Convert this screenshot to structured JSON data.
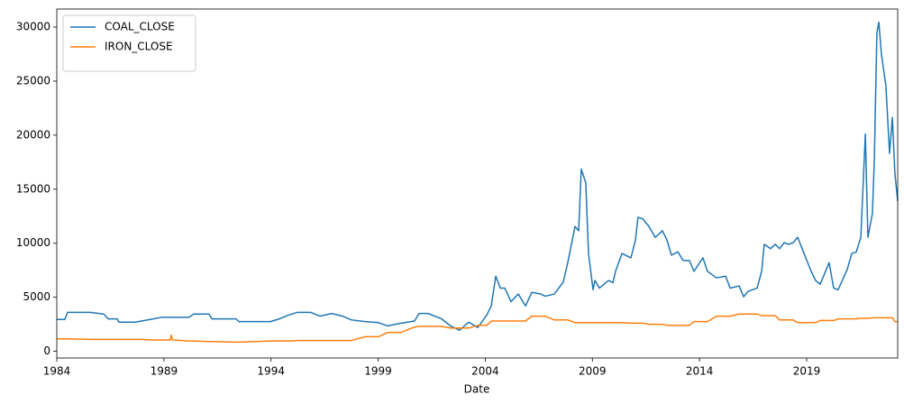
{
  "chart_data": {
    "type": "line",
    "x_label": "Date",
    "x": [
      1984.0,
      1984.38,
      1984.5,
      1985.56,
      1986.19,
      1986.4,
      1986.82,
      1986.9,
      1987.66,
      1987.95,
      1988.5,
      1988.92,
      1989.3,
      1989.34,
      1989.4,
      1990.18,
      1990.39,
      1991.11,
      1991.24,
      1992.37,
      1992.5,
      1993.97,
      1994.39,
      1994.81,
      1995.23,
      1995.86,
      1996.28,
      1996.83,
      1997.34,
      1997.76,
      1998.39,
      1999.02,
      1999.44,
      2000.07,
      2000.7,
      2000.91,
      2001.33,
      2001.96,
      2002.38,
      2002.8,
      2003.23,
      2003.65,
      2004.07,
      2004.28,
      2004.49,
      2004.7,
      2004.91,
      2005.2,
      2005.54,
      2005.88,
      2006.17,
      2006.59,
      2006.8,
      2007.22,
      2007.64,
      2007.85,
      2008.19,
      2008.36,
      2008.48,
      2008.69,
      2008.82,
      2009.03,
      2009.12,
      2009.33,
      2009.75,
      2009.96,
      2010.08,
      2010.38,
      2010.8,
      2011.01,
      2011.13,
      2011.35,
      2011.64,
      2011.93,
      2012.27,
      2012.48,
      2012.69,
      2012.99,
      2013.24,
      2013.53,
      2013.74,
      2014.16,
      2014.37,
      2014.79,
      2015.22,
      2015.43,
      2015.85,
      2016.06,
      2016.27,
      2016.69,
      2016.9,
      2017.02,
      2017.32,
      2017.53,
      2017.74,
      2017.95,
      2018.16,
      2018.37,
      2018.58,
      2018.79,
      2019.21,
      2019.42,
      2019.63,
      2019.84,
      2020.05,
      2020.26,
      2020.47,
      2020.89,
      2021.11,
      2021.32,
      2021.53,
      2021.74,
      2021.86,
      2022.07,
      2022.16,
      2022.28,
      2022.37,
      2022.49,
      2022.7,
      2022.87,
      2023.0,
      2023.12,
      2023.25
    ],
    "series": [
      {
        "name": "COAL_CLOSE",
        "color": "#1f77b4",
        "values": [
          2950,
          2950,
          3600,
          3600,
          3450,
          3000,
          3000,
          2700,
          2700,
          2800,
          3000,
          3150,
          3150,
          3150,
          3150,
          3150,
          3450,
          3450,
          3000,
          3000,
          2750,
          2750,
          3000,
          3350,
          3600,
          3600,
          3250,
          3500,
          3250,
          2900,
          2750,
          2650,
          2350,
          2600,
          2800,
          3500,
          3500,
          3000,
          2350,
          1950,
          2700,
          2200,
          3350,
          4200,
          6950,
          5850,
          5850,
          4600,
          5300,
          4200,
          5450,
          5300,
          5100,
          5300,
          6400,
          8200,
          11550,
          11150,
          16850,
          15600,
          9050,
          5700,
          6550,
          5850,
          6550,
          6350,
          7400,
          9050,
          8650,
          10300,
          12400,
          12250,
          11550,
          10550,
          11150,
          10300,
          8900,
          9200,
          8400,
          8400,
          7400,
          8650,
          7400,
          6800,
          6950,
          5850,
          6050,
          5050,
          5550,
          5850,
          7400,
          9900,
          9500,
          9900,
          9500,
          10050,
          9900,
          10050,
          10550,
          9500,
          7400,
          6550,
          6200,
          7200,
          8200,
          5850,
          5700,
          7550,
          9050,
          9200,
          10550,
          20100,
          10550,
          12750,
          17750,
          29500,
          30450,
          27500,
          24550,
          18300,
          21650,
          16450,
          13900
        ]
      },
      {
        "name": "IRON_CLOSE",
        "color": "#ff7f0e",
        "values": [
          1150,
          1150,
          1150,
          1100,
          1100,
          1100,
          1100,
          1100,
          1100,
          1100,
          1050,
          1050,
          1050,
          1500,
          1050,
          950,
          950,
          900,
          900,
          850,
          850,
          950,
          950,
          950,
          1000,
          1000,
          1000,
          1000,
          1000,
          1000,
          1350,
          1350,
          1750,
          1750,
          2250,
          2300,
          2300,
          2300,
          2150,
          2150,
          2150,
          2400,
          2400,
          2800,
          2800,
          2800,
          2800,
          2800,
          2800,
          2800,
          3250,
          3250,
          3250,
          2900,
          2900,
          2900,
          2650,
          2650,
          2650,
          2650,
          2650,
          2650,
          2650,
          2650,
          2650,
          2650,
          2650,
          2650,
          2600,
          2600,
          2600,
          2600,
          2500,
          2500,
          2500,
          2400,
          2400,
          2400,
          2400,
          2400,
          2750,
          2750,
          2750,
          3250,
          3250,
          3250,
          3450,
          3450,
          3450,
          3450,
          3300,
          3300,
          3300,
          3300,
          2900,
          2900,
          2900,
          2900,
          2650,
          2650,
          2650,
          2650,
          2850,
          2850,
          2850,
          2850,
          3000,
          3000,
          3000,
          3000,
          3050,
          3050,
          3050,
          3100,
          3100,
          3100,
          3100,
          3100,
          3100,
          3100,
          3100,
          2750,
          2750
        ]
      }
    ],
    "xlim": [
      1984,
      2023.25
    ],
    "xticks": [
      1984,
      1989,
      1994,
      1999,
      2004,
      2009,
      2014,
      2019
    ],
    "ylim": [
      -620,
      31670
    ],
    "yticks": [
      0,
      5000,
      10000,
      15000,
      20000,
      25000,
      30000
    ],
    "legend": "upper left",
    "grid": false
  }
}
